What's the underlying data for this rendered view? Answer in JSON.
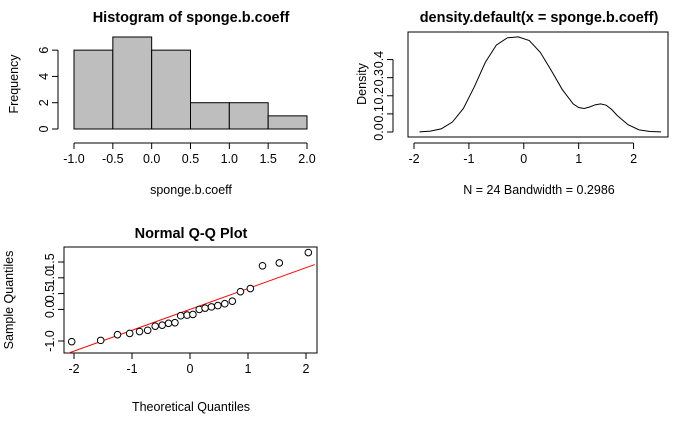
{
  "chart_data": [
    {
      "type": "bar",
      "subtype": "histogram",
      "title": "Histogram of sponge.b.coeff",
      "xlabel": "sponge.b.coeff",
      "ylabel": "Frequency",
      "bins": [
        {
          "from": -1.0,
          "to": -0.5,
          "count": 6
        },
        {
          "from": -0.5,
          "to": 0.0,
          "count": 7
        },
        {
          "from": 0.0,
          "to": 0.5,
          "count": 6
        },
        {
          "from": 0.5,
          "to": 1.0,
          "count": 2
        },
        {
          "from": 1.0,
          "to": 1.5,
          "count": 2
        },
        {
          "from": 1.5,
          "to": 2.0,
          "count": 1
        }
      ],
      "xticks": [
        "-1.0",
        "-0.5",
        "0.0",
        "0.5",
        "1.0",
        "1.5",
        "2.0"
      ],
      "yticks": [
        "0",
        "2",
        "4",
        "6"
      ],
      "xlim": [
        -1.0,
        2.0
      ],
      "ylim": [
        0,
        7
      ],
      "bar_color": "#bebebe",
      "grid": false
    },
    {
      "type": "line",
      "title": "density.default(x = sponge.b.coeff)",
      "xlabel": "N = 24   Bandwidth = 0.2986",
      "ylabel": "Density",
      "series": [
        {
          "x": [
            -1.9,
            -1.7,
            -1.5,
            -1.3,
            -1.1,
            -0.9,
            -0.7,
            -0.5,
            -0.3,
            -0.1,
            0.1,
            0.3,
            0.5,
            0.7,
            0.9,
            1.0,
            1.1,
            1.2,
            1.3,
            1.4,
            1.5,
            1.6,
            1.7,
            1.9,
            2.1,
            2.3,
            2.5
          ],
          "y": [
            0.001,
            0.005,
            0.018,
            0.055,
            0.13,
            0.25,
            0.385,
            0.48,
            0.52,
            0.525,
            0.505,
            0.44,
            0.34,
            0.235,
            0.155,
            0.135,
            0.13,
            0.138,
            0.15,
            0.155,
            0.148,
            0.125,
            0.092,
            0.04,
            0.012,
            0.003,
            0.001
          ]
        }
      ],
      "xticks": [
        "-2",
        "-1",
        "0",
        "1",
        "2"
      ],
      "yticks": [
        "0.0",
        "0.1",
        "0.2",
        "0.3",
        "0.4"
      ],
      "xlim": [
        -2.0,
        2.5
      ],
      "ylim": [
        0,
        0.53
      ],
      "grid": false
    },
    {
      "type": "scatter",
      "title": "Normal Q-Q Plot",
      "xlabel": "Theoretical Quantiles",
      "ylabel": "Sample Quantiles",
      "points": [
        {
          "x": -2.04,
          "y": -1.02
        },
        {
          "x": -1.54,
          "y": -0.98
        },
        {
          "x": -1.25,
          "y": -0.8
        },
        {
          "x": -1.04,
          "y": -0.76
        },
        {
          "x": -0.87,
          "y": -0.7
        },
        {
          "x": -0.73,
          "y": -0.66
        },
        {
          "x": -0.6,
          "y": -0.53
        },
        {
          "x": -0.48,
          "y": -0.5
        },
        {
          "x": -0.37,
          "y": -0.44
        },
        {
          "x": -0.26,
          "y": -0.42
        },
        {
          "x": -0.16,
          "y": -0.2
        },
        {
          "x": -0.05,
          "y": -0.18
        },
        {
          "x": 0.05,
          "y": -0.16
        },
        {
          "x": 0.16,
          "y": 0.0
        },
        {
          "x": 0.26,
          "y": 0.04
        },
        {
          "x": 0.37,
          "y": 0.08
        },
        {
          "x": 0.48,
          "y": 0.12
        },
        {
          "x": 0.6,
          "y": 0.18
        },
        {
          "x": 0.73,
          "y": 0.26
        },
        {
          "x": 0.87,
          "y": 0.56
        },
        {
          "x": 1.04,
          "y": 0.66
        },
        {
          "x": 1.25,
          "y": 1.38
        },
        {
          "x": 1.54,
          "y": 1.47
        },
        {
          "x": 2.04,
          "y": 1.8
        }
      ],
      "reference_line": {
        "slope": 0.66,
        "intercept": 0.0,
        "color": "#ff0000"
      },
      "xticks": [
        "-2",
        "-1",
        "0",
        "1",
        "2"
      ],
      "yticks": [
        "-1.0",
        "0.0",
        "0.5",
        "1.0",
        "1.5"
      ],
      "xlim": [
        -2.15,
        2.15
      ],
      "ylim": [
        -1.15,
        1.95
      ],
      "grid": false
    }
  ]
}
